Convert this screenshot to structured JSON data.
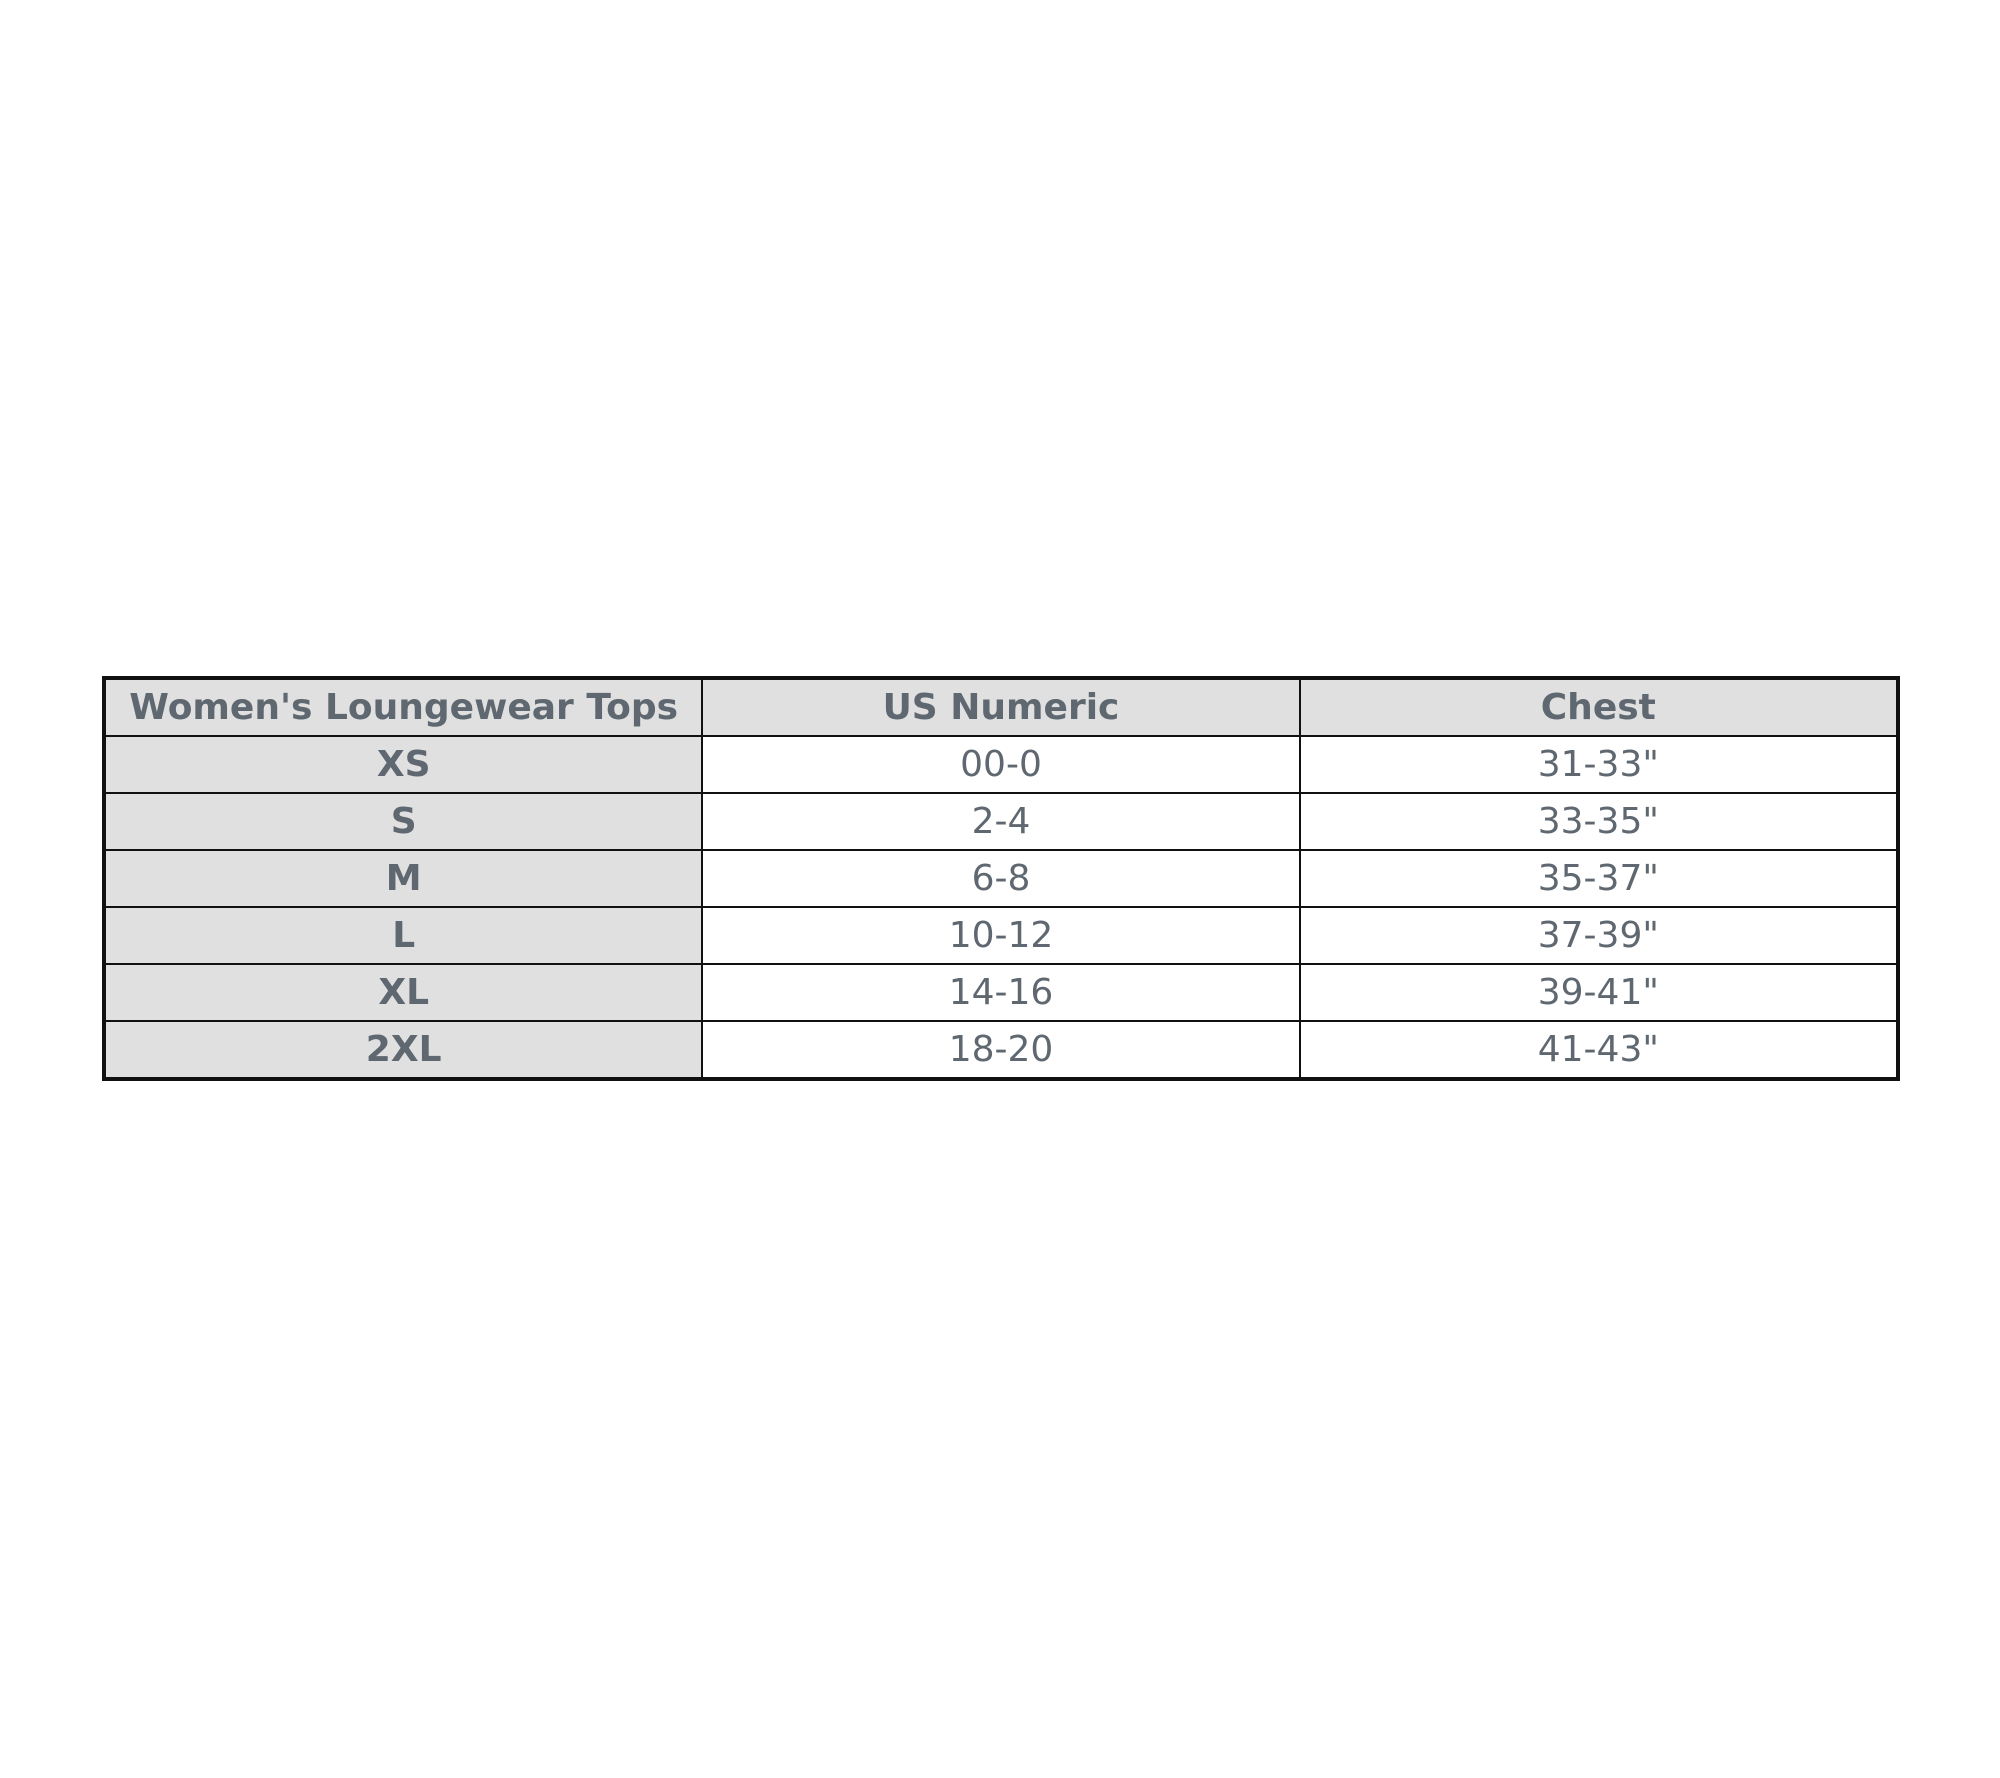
{
  "table": {
    "headers": [
      "Women's Loungewear Tops",
      "US Numeric",
      "Chest"
    ],
    "rows": [
      [
        "XS",
        "00-0",
        "31-33\""
      ],
      [
        "S",
        "2-4",
        "33-35\""
      ],
      [
        "M",
        "6-8",
        "35-37\""
      ],
      [
        "L",
        "10-12",
        "37-39\""
      ],
      [
        "XL",
        "14-16",
        "39-41\""
      ],
      [
        "2XL",
        "18-20",
        "41-43\""
      ]
    ]
  },
  "colors": {
    "header_bg": "#e0e0e0",
    "text": "#5f6870",
    "border": "#111111"
  }
}
